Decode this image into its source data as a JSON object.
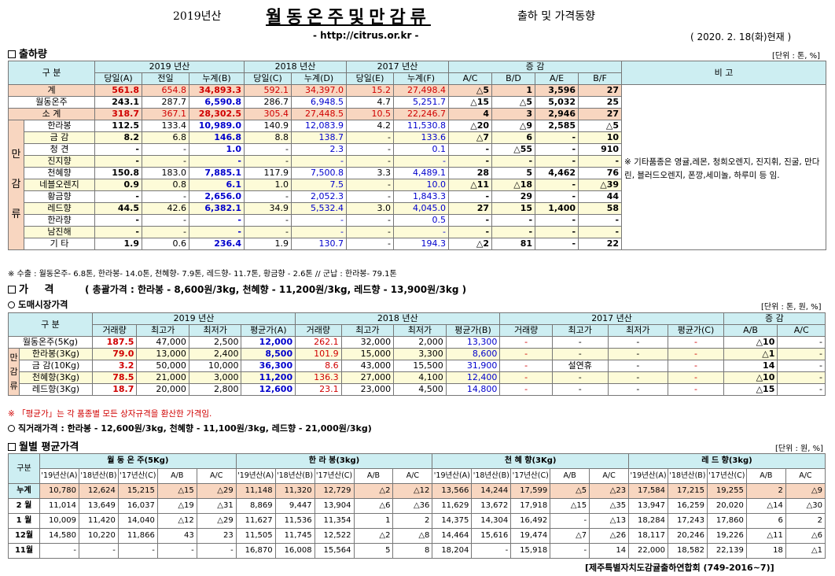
{
  "title": {
    "prefix": "2019년산",
    "main": "월동온주및만감류",
    "suffix": "출하 및 가격동향",
    "url": "- http://citrus.or.kr -",
    "date": "( 2020. 2. 18(화)현재 )"
  },
  "sec1": {
    "title": "출하량",
    "unit": "[단위 : 톤, %]",
    "h1": [
      "구 분",
      "2019 년산",
      "2018 년산",
      "2017 년산",
      "증 감",
      "비 고"
    ],
    "h2": [
      "당일(A)",
      "전일",
      "누계(B)",
      "당일(C)",
      "누계(D)",
      "당일(E)",
      "누계(F)",
      "A/C",
      "B/D",
      "A/E",
      "B/F"
    ],
    "side": [
      "만",
      "감",
      "류"
    ],
    "rows": [
      {
        "label": "계",
        "vals": [
          "561.8",
          "654.8",
          "34,893.3",
          "592.1",
          "34,397.0",
          "15.2",
          "27,498.4",
          "△5",
          "1",
          "3,596",
          "27"
        ]
      },
      {
        "label": "월동온주",
        "vals": [
          "243.1",
          "287.7",
          "6,590.8",
          "286.7",
          "6,948.5",
          "4.7",
          "5,251.7",
          "△15",
          "△5",
          "5,032",
          "25"
        ]
      },
      {
        "label": "소 계",
        "vals": [
          "318.7",
          "367.1",
          "28,302.5",
          "305.4",
          "27,448.5",
          "10.5",
          "22,246.7",
          "4",
          "3",
          "2,946",
          "27"
        ]
      },
      {
        "label": "한라봉",
        "vals": [
          "112.5",
          "133.4",
          "10,989.0",
          "140.9",
          "12,083.9",
          "4.2",
          "11,530.8",
          "△20",
          "△9",
          "2,585",
          "△5"
        ]
      },
      {
        "label": "금 감",
        "vals": [
          "8.2",
          "6.8",
          "146.8",
          "8.8",
          "138.7",
          "-",
          "133.6",
          "△7",
          "6",
          "-",
          "10"
        ]
      },
      {
        "label": "청 견",
        "vals": [
          "-",
          "-",
          "1.0",
          "-",
          "2.3",
          "-",
          "0.1",
          "-",
          "△55",
          "-",
          "910"
        ]
      },
      {
        "label": "진지향",
        "vals": [
          "-",
          "-",
          "-",
          "-",
          "-",
          "-",
          "-",
          "-",
          "-",
          "-",
          "-"
        ]
      },
      {
        "label": "천혜향",
        "vals": [
          "150.8",
          "183.0",
          "7,885.1",
          "117.9",
          "7,500.8",
          "3.3",
          "4,489.1",
          "28",
          "5",
          "4,462",
          "76"
        ]
      },
      {
        "label": "네블오렌지",
        "vals": [
          "0.9",
          "0.8",
          "6.1",
          "1.0",
          "7.5",
          "-",
          "10.0",
          "△11",
          "△18",
          "-",
          "△39"
        ]
      },
      {
        "label": "황금향",
        "vals": [
          "-",
          "-",
          "2,656.0",
          "-",
          "2,052.3",
          "-",
          "1,843.3",
          "-",
          "29",
          "-",
          "44"
        ]
      },
      {
        "label": "레드향",
        "vals": [
          "44.5",
          "42.6",
          "6,382.1",
          "34.9",
          "5,532.4",
          "3.0",
          "4,045.0",
          "27",
          "15",
          "1,400",
          "58"
        ]
      },
      {
        "label": "한라향",
        "vals": [
          "-",
          "-",
          "-",
          "-",
          "-",
          "-",
          "0.5",
          "-",
          "-",
          "-",
          "-"
        ]
      },
      {
        "label": "남진해",
        "vals": [
          "-",
          "-",
          "-",
          "-",
          "-",
          "-",
          "-",
          "-",
          "-",
          "-",
          "-"
        ]
      },
      {
        "label": "기 타",
        "vals": [
          "1.9",
          "0.6",
          "236.4",
          "1.9",
          "130.7",
          "-",
          "194.3",
          "△2",
          "81",
          "-",
          "22"
        ]
      }
    ],
    "remark": "※ 기타품종은 영귤,레몬, 청희오렌지, 진지휘, 진굴, 만다린, 블러드오렌지, 폰깡,세미놀, 하루미 등 임.",
    "note": "※ 수출 : 월동온주- 6.8톤, 한라봉- 14.0톤, 천혜향- 7.9톤, 레드향- 11.7톤, 황금향 - 2.6톤  // 군납 : 한라봉- 79.1톤"
  },
  "sec2": {
    "title": "가 격",
    "summary": "( 총괄가격 : 한라봉 - 8,600원/3kg, 천혜향 - 11,200원/3kg, 레드향 - 13,900원/3kg )",
    "sub": "도매시장가격",
    "unit": "[단위 : 톤, 원, %]",
    "h1": [
      "구 분",
      "2019 년산",
      "2018 년산",
      "2017 년산",
      "증 감"
    ],
    "h2": [
      "거래량",
      "최고가",
      "최저가",
      "평균가(A)",
      "거래량",
      "최고가",
      "최저가",
      "평균가(B)",
      "거래량",
      "최고가",
      "최저가",
      "평균가(C)",
      "A/B",
      "A/C"
    ],
    "side": [
      "만",
      "감",
      "류"
    ],
    "rows": [
      {
        "label": "월동온주(5Kg)",
        "vals": [
          "187.5",
          "47,000",
          "2,500",
          "12,000",
          "262.1",
          "32,000",
          "2,000",
          "13,300",
          "-",
          "-",
          "-",
          "-",
          "△10",
          "-"
        ]
      },
      {
        "label": "한라봉(3Kg)",
        "vals": [
          "79.0",
          "13,000",
          "2,400",
          "8,500",
          "101.9",
          "15,000",
          "3,300",
          "8,600",
          "-",
          "-",
          "-",
          "-",
          "△1",
          "-"
        ]
      },
      {
        "label": "금 감(10Kg)",
        "vals": [
          "3.2",
          "50,000",
          "10,000",
          "36,300",
          "8.6",
          "43,000",
          "15,500",
          "31,900",
          "-",
          "설연휴",
          "-",
          "-",
          "14",
          "-"
        ]
      },
      {
        "label": "천혜향(3Kg)",
        "vals": [
          "78.5",
          "21,000",
          "3,000",
          "11,200",
          "136.3",
          "27,000",
          "4,100",
          "12,400",
          "-",
          "-",
          "-",
          "-",
          "△10",
          "-"
        ]
      },
      {
        "label": "레드향(3Kg)",
        "vals": [
          "18.7",
          "20,000",
          "2,800",
          "12,600",
          "23.1",
          "23,000",
          "4,500",
          "14,800",
          "-",
          "-",
          "-",
          "-",
          "△15",
          "-"
        ]
      }
    ],
    "note": "※ 「평균가」는 각 품종별 모든 상자규격을 환산한 가격임.",
    "direct": "직거래가격 : 한라봉 - 12,600원/3kg,  천혜향 - 11,100원/3kg,  레드향 - 21,000원/3kg)"
  },
  "sec3": {
    "title": "월별 평균가격",
    "unit": "[단위 : 원, %]",
    "groups": [
      "월 동 온 주(5Kg)",
      "한 라 봉(3kg)",
      "천 혜 향(3Kg)",
      "레 드 향(3kg)"
    ],
    "corner": "구분",
    "sub": [
      "'19년산(A)",
      "'18년산(B)",
      "'17년산(C)",
      "A/B",
      "A/C"
    ],
    "rows": [
      {
        "label": "누계",
        "vals": [
          "10,780",
          "12,624",
          "15,215",
          "△15",
          "△29",
          "11,148",
          "11,320",
          "12,729",
          "△2",
          "△12",
          "13,566",
          "14,244",
          "17,599",
          "△5",
          "△23",
          "17,584",
          "17,215",
          "19,255",
          "2",
          "△9"
        ]
      },
      {
        "label": "2 월",
        "vals": [
          "11,014",
          "13,649",
          "16,037",
          "△19",
          "△31",
          "8,869",
          "9,447",
          "13,904",
          "△6",
          "△36",
          "11,629",
          "13,672",
          "17,918",
          "△15",
          "△35",
          "13,947",
          "16,259",
          "20,020",
          "△14",
          "△30"
        ]
      },
      {
        "label": "1 월",
        "vals": [
          "10,009",
          "11,420",
          "14,040",
          "△12",
          "△29",
          "11,627",
          "11,536",
          "11,354",
          "1",
          "2",
          "14,375",
          "14,304",
          "16,492",
          "-",
          "△13",
          "18,284",
          "17,243",
          "17,860",
          "6",
          "2"
        ]
      },
      {
        "label": "12월",
        "vals": [
          "14,580",
          "10,220",
          "11,866",
          "43",
          "23",
          "11,505",
          "11,745",
          "12,522",
          "△2",
          "△8",
          "14,464",
          "15,616",
          "19,474",
          "△7",
          "△26",
          "18,117",
          "20,246",
          "19,226",
          "△11",
          "△6"
        ]
      },
      {
        "label": "11월",
        "vals": [
          "-",
          "-",
          "-",
          "-",
          "-",
          "16,870",
          "16,008",
          "15,564",
          "5",
          "8",
          "18,204",
          "-",
          "15,918",
          "-",
          "14",
          "22,000",
          "18,582",
          "22,139",
          "18",
          "△1"
        ]
      }
    ],
    "footer": "[제주특별자치도감귤출하연합회 (749-2016~7)]"
  }
}
